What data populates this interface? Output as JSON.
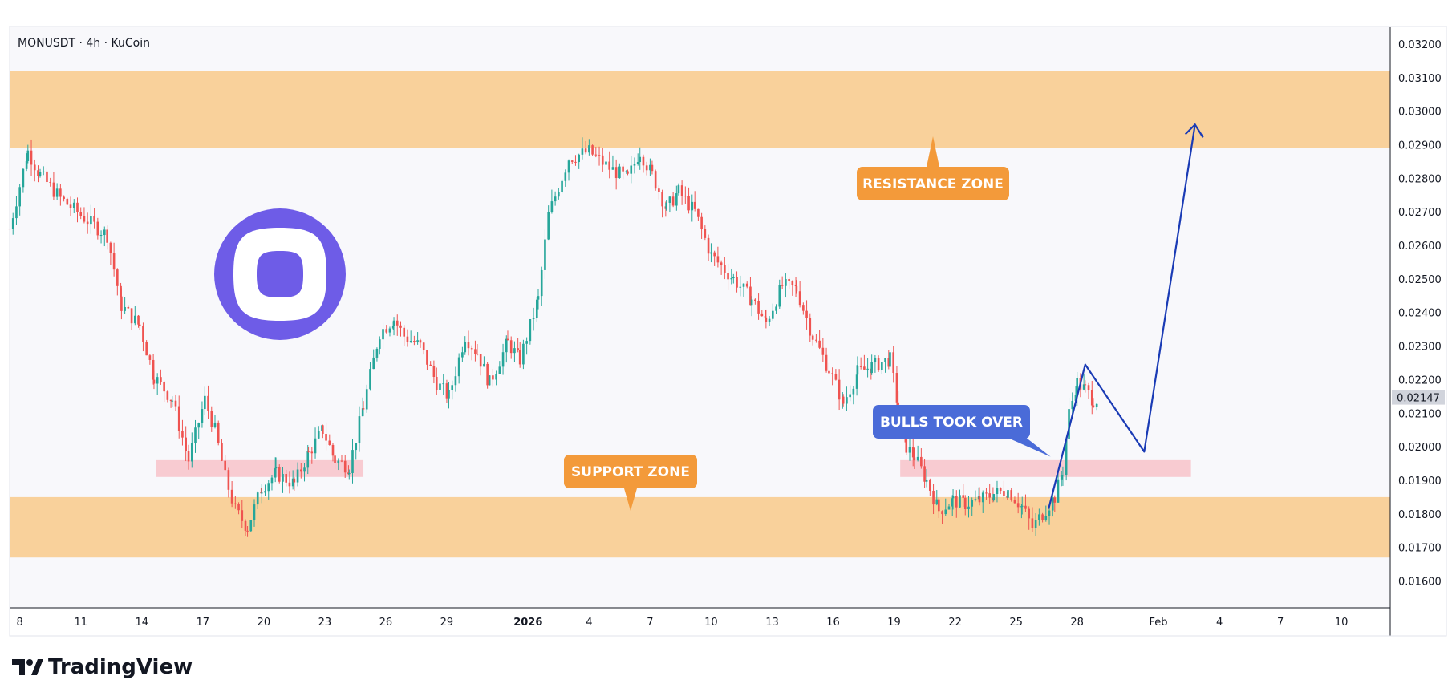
{
  "header": {
    "symbol_line": "MONUSDT · 4h · KuCoin"
  },
  "brand": {
    "name": "TradingView",
    "tv_icon": "tradingview-logo-icon"
  },
  "price_badge": "0.02147",
  "annotations": {
    "resistance": "RESISTANCE ZONE",
    "support": "SUPPORT ZONE",
    "bulls": "BULLS TOOK OVER"
  },
  "colors": {
    "up": "#26a69a",
    "down": "#ef5350",
    "zone": "#f9d19b",
    "pink": "#f7c5cc",
    "orange_label": "#f39a3a",
    "blue_label": "#4a6bd8",
    "projection": "#1a3bb5",
    "logo": "#6e5ce7"
  },
  "chart_data": {
    "type": "candlestick",
    "symbol": "MONUSDT",
    "timeframe": "4h",
    "exchange": "KuCoin",
    "ylim": [
      0.0152,
      0.0325
    ],
    "y_ticks": [
      "0.03200",
      "0.03100",
      "0.03000",
      "0.02900",
      "0.02800",
      "0.02700",
      "0.02600",
      "0.02500",
      "0.02400",
      "0.02300",
      "0.02200",
      "0.02100",
      "0.02000",
      "0.01900",
      "0.01800",
      "0.01700",
      "0.01600"
    ],
    "y_tick_values": [
      0.032,
      0.031,
      0.03,
      0.029,
      0.028,
      0.027,
      0.026,
      0.025,
      0.024,
      0.023,
      0.022,
      0.021,
      0.02,
      0.019,
      0.018,
      0.017,
      0.016
    ],
    "x_ticks": [
      {
        "label": "8",
        "day": 8
      },
      {
        "label": "11",
        "day": 11
      },
      {
        "label": "14",
        "day": 14
      },
      {
        "label": "17",
        "day": 17
      },
      {
        "label": "20",
        "day": 20
      },
      {
        "label": "23",
        "day": 23
      },
      {
        "label": "26",
        "day": 26
      },
      {
        "label": "29",
        "day": 29
      },
      {
        "label": "2026",
        "day": 33,
        "bold": true
      },
      {
        "label": "4",
        "day": 36
      },
      {
        "label": "7",
        "day": 39
      },
      {
        "label": "10",
        "day": 42
      },
      {
        "label": "13",
        "day": 45
      },
      {
        "label": "16",
        "day": 48
      },
      {
        "label": "19",
        "day": 51
      },
      {
        "label": "22",
        "day": 54
      },
      {
        "label": "25",
        "day": 57
      },
      {
        "label": "28",
        "day": 60
      },
      {
        "label": "Feb",
        "day": 64
      },
      {
        "label": "4",
        "day": 67
      },
      {
        "label": "7",
        "day": 70
      },
      {
        "label": "10",
        "day": 73
      }
    ],
    "x_day_range": [
      7.5,
      75.4
    ],
    "last_price": 0.02147,
    "zones": [
      {
        "name": "resistance",
        "from": 0.0289,
        "to": 0.0312
      },
      {
        "name": "support",
        "from": 0.0167,
        "to": 0.0185
      }
    ],
    "pink_zones": [
      {
        "from_day": 14.7,
        "to_day": 24.9,
        "low": 0.0191,
        "high": 0.0196
      },
      {
        "from_day": 51.3,
        "to_day": 65.6,
        "low": 0.0191,
        "high": 0.0196
      }
    ],
    "anchors": [
      [
        7.5,
        0.0265
      ],
      [
        8.4,
        0.0288
      ],
      [
        9.0,
        0.0281
      ],
      [
        10.0,
        0.0274
      ],
      [
        11.0,
        0.0269
      ],
      [
        12.3,
        0.0263
      ],
      [
        13.0,
        0.0242
      ],
      [
        13.9,
        0.0236
      ],
      [
        14.6,
        0.0221
      ],
      [
        15.5,
        0.0214
      ],
      [
        16.3,
        0.0196
      ],
      [
        17.1,
        0.0214
      ],
      [
        17.6,
        0.0205
      ],
      [
        18.1,
        0.0191
      ],
      [
        18.6,
        0.0181
      ],
      [
        19.2,
        0.0176
      ],
      [
        19.9,
        0.0188
      ],
      [
        20.6,
        0.0192
      ],
      [
        21.5,
        0.0189
      ],
      [
        22.2,
        0.0198
      ],
      [
        22.9,
        0.0205
      ],
      [
        23.5,
        0.0196
      ],
      [
        24.2,
        0.0194
      ],
      [
        24.9,
        0.0212
      ],
      [
        25.7,
        0.0234
      ],
      [
        26.4,
        0.0238
      ],
      [
        26.9,
        0.0233
      ],
      [
        27.7,
        0.023
      ],
      [
        28.5,
        0.0219
      ],
      [
        29.1,
        0.0215
      ],
      [
        29.9,
        0.0233
      ],
      [
        30.5,
        0.0228
      ],
      [
        31.1,
        0.0219
      ],
      [
        32.0,
        0.0231
      ],
      [
        32.6,
        0.0226
      ],
      [
        33.5,
        0.0244
      ],
      [
        34.0,
        0.0269
      ],
      [
        35.0,
        0.0286
      ],
      [
        36.0,
        0.0288
      ],
      [
        37.0,
        0.0283
      ],
      [
        37.9,
        0.028
      ],
      [
        38.5,
        0.0288
      ],
      [
        39.1,
        0.0281
      ],
      [
        39.8,
        0.0271
      ],
      [
        40.4,
        0.0276
      ],
      [
        41.2,
        0.027
      ],
      [
        42.0,
        0.0257
      ],
      [
        43.1,
        0.025
      ],
      [
        44.0,
        0.0244
      ],
      [
        44.7,
        0.0237
      ],
      [
        45.5,
        0.0248
      ],
      [
        46.2,
        0.0247
      ],
      [
        47.0,
        0.0233
      ],
      [
        47.8,
        0.0223
      ],
      [
        48.5,
        0.0213
      ],
      [
        49.2,
        0.0222
      ],
      [
        49.9,
        0.0224
      ],
      [
        50.8,
        0.0226
      ],
      [
        51.2,
        0.0212
      ],
      [
        51.6,
        0.02
      ],
      [
        52.0,
        0.0197
      ],
      [
        52.6,
        0.019
      ],
      [
        53.2,
        0.0181
      ],
      [
        53.9,
        0.0184
      ],
      [
        54.5,
        0.0183
      ],
      [
        55.2,
        0.0184
      ],
      [
        55.9,
        0.0186
      ],
      [
        56.6,
        0.0187
      ],
      [
        57.3,
        0.0182
      ],
      [
        57.8,
        0.0176
      ],
      [
        58.3,
        0.018
      ],
      [
        58.9,
        0.0185
      ],
      [
        59.3,
        0.0193
      ],
      [
        59.6,
        0.021
      ],
      [
        60.0,
        0.0219
      ],
      [
        60.4,
        0.0217
      ],
      [
        60.8,
        0.0214
      ],
      [
        61.0,
        0.0214
      ]
    ],
    "series_seed": 7,
    "projection_path": [
      {
        "day": 58.6,
        "price": 0.01815
      },
      {
        "day": 60.4,
        "price": 0.02245
      },
      {
        "day": 63.3,
        "price": 0.01985
      },
      {
        "day": 65.8,
        "price": 0.0296
      }
    ],
    "bulls_arrow": {
      "day": 58.7,
      "price": 0.0197
    }
  }
}
